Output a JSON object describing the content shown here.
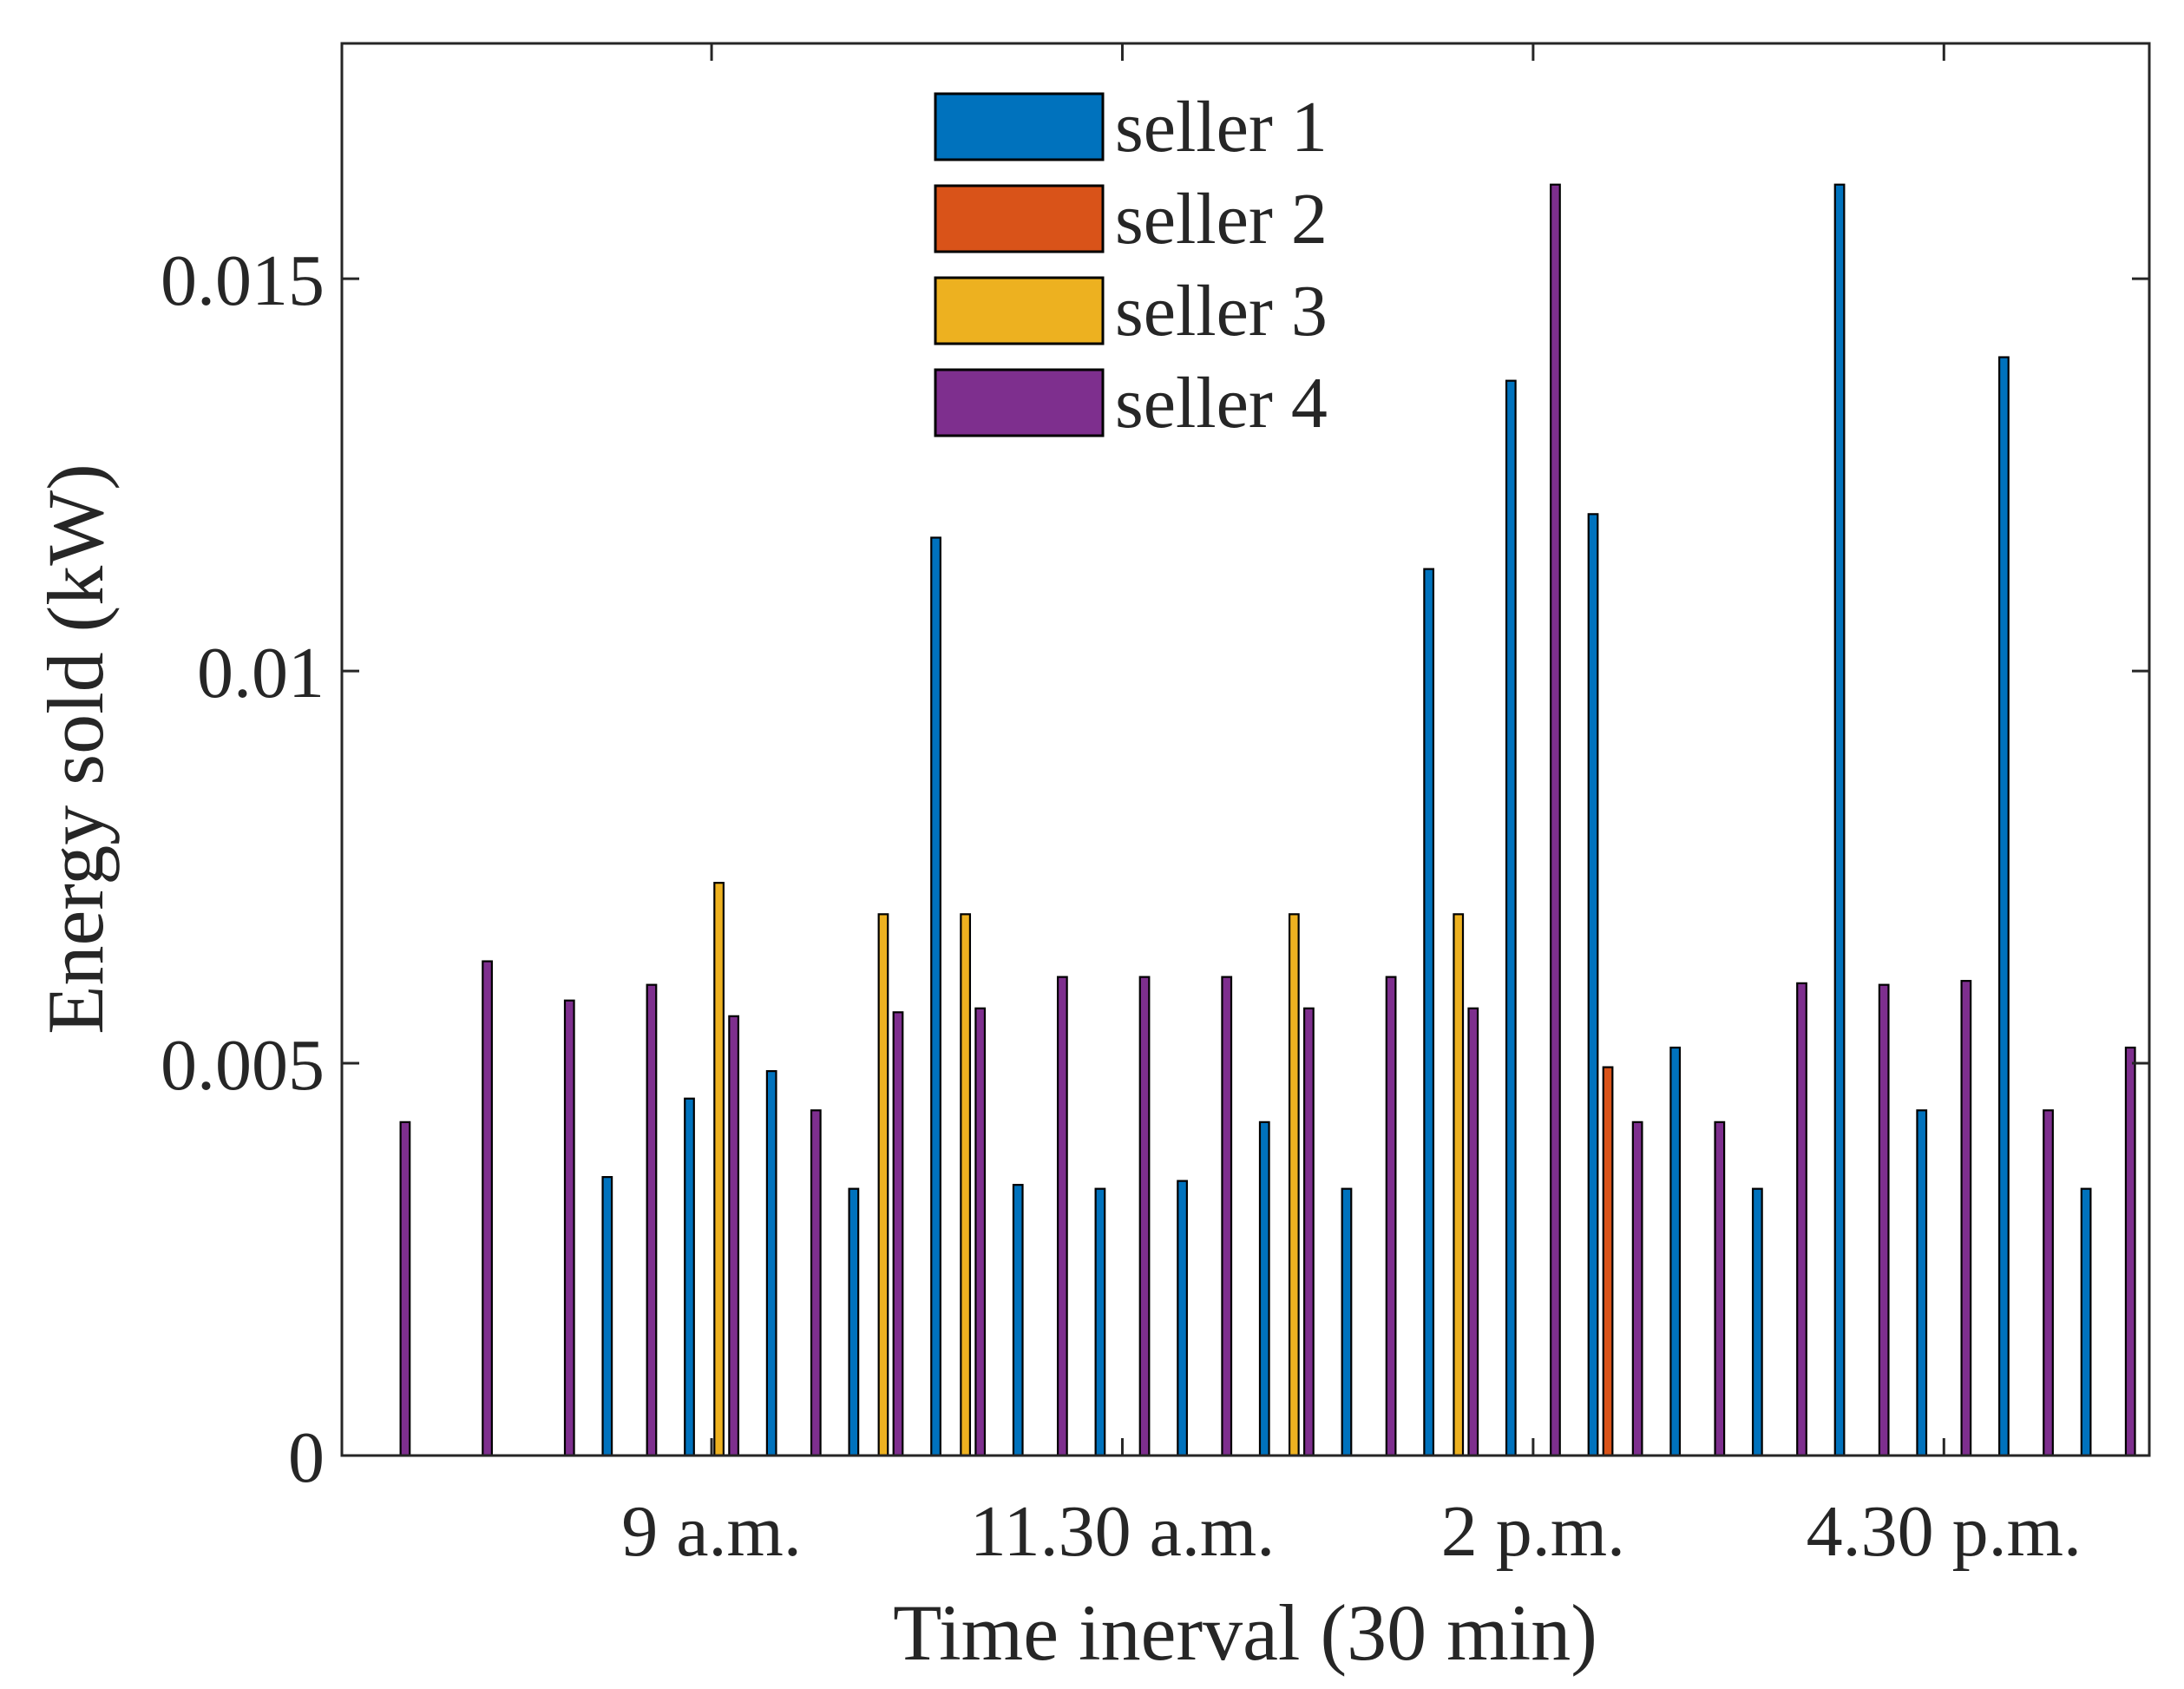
{
  "chart_data": {
    "type": "bar",
    "xlabel": "Time inerval (30 min)",
    "ylabel": "Energy sold (kW)",
    "ylim": [
      0,
      0.018
    ],
    "yticks": [
      0,
      0.005,
      0.01,
      0.015
    ],
    "ytick_labels": [
      "0",
      "0.005",
      "0.01",
      "0.015"
    ],
    "xlim": [
      0.5,
      22.5
    ],
    "xtick_positions": [
      5,
      10,
      15,
      20
    ],
    "xtick_labels": [
      "9 a.m.",
      "11.30 a.m.",
      "2 p.m.",
      "4.30 p.m."
    ],
    "legend_position": "top-center",
    "categories": [
      1,
      2,
      3,
      4,
      5,
      6,
      7,
      8,
      9,
      10,
      11,
      12,
      13,
      14,
      15,
      16,
      17,
      18,
      19,
      20,
      21,
      22
    ],
    "series": [
      {
        "name": "seller 1",
        "color": "#0072BD",
        "values": [
          0,
          0,
          0,
          0.00355,
          0.00455,
          0.0049,
          0.0034,
          0.0117,
          0.00345,
          0.0034,
          0.0035,
          0.00425,
          0.0034,
          0.0113,
          0.0137,
          0.012,
          0.0052,
          0.0034,
          0.0162,
          0.0044,
          0.014,
          0.0034
        ]
      },
      {
        "name": "seller 2",
        "color": "#D95319",
        "values": [
          0,
          0,
          0,
          0,
          0,
          0,
          0,
          0,
          0,
          0,
          0,
          0,
          0,
          0,
          0,
          0.00495,
          0,
          0,
          0,
          0,
          0,
          0
        ]
      },
      {
        "name": "seller 3",
        "color": "#EDB120",
        "values": [
          0,
          0,
          0,
          0,
          0.0073,
          0,
          0.0069,
          0.0069,
          0,
          0,
          0,
          0.0069,
          0,
          0.0069,
          0,
          0,
          0,
          0,
          0,
          0,
          0,
          0
        ]
      },
      {
        "name": "seller 4",
        "color": "#7E2F8E",
        "values": [
          0.00425,
          0.0063,
          0.0058,
          0.006,
          0.0056,
          0.0044,
          0.00565,
          0.0057,
          0.0061,
          0.0061,
          0.0061,
          0.0057,
          0.0061,
          0.0057,
          0.0162,
          0.00425,
          0.00425,
          0.00602,
          0.006,
          0.00605,
          0.0044,
          0.0052
        ]
      }
    ]
  }
}
